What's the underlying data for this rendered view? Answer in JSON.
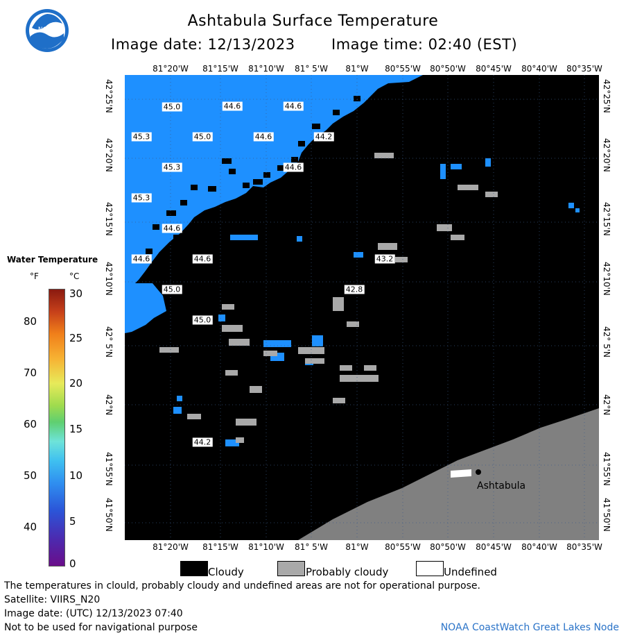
{
  "header": {
    "title": "Ashtabula Surface Temperature",
    "image_date": "Image date: 12/13/2023",
    "image_time": "Image time: 02:40 (EST)"
  },
  "logo": {
    "text": "NOAA",
    "color": "#1f6fc8"
  },
  "map": {
    "lon_labels": [
      "81°20'W",
      "81°15'W",
      "81°10'W",
      "81° 5'W",
      "81°W",
      "80°55'W",
      "80°50'W",
      "80°45'W",
      "80°40'W",
      "80°35'W"
    ],
    "lat_labels": [
      "42°25'N",
      "42°20'N",
      "42°15'N",
      "42°10'N",
      "42° 5'N",
      "42°N",
      "41°55'N",
      "41°50'N"
    ],
    "town": "Ashtabula",
    "water_color": "#1e90ff",
    "cloud_color": "#000000",
    "probably_cloudy_color": "#a9a9a9",
    "land_color": "#808080",
    "temperatures": [
      "45.0",
      "44.6",
      "44.6",
      "45.3",
      "45.0",
      "44.6",
      "44.2",
      "45.3",
      "44.6",
      "45.3",
      "44.6",
      "44.6",
      "44.6",
      "43.2",
      "42.8",
      "45.0",
      "45.0",
      "44.2"
    ]
  },
  "legend": {
    "title": "Water Temperature",
    "unit_f": "°F",
    "unit_c": "°C",
    "fahrenheit_ticks": [
      "80",
      "70",
      "60",
      "50",
      "40"
    ],
    "celsius_ticks": [
      "30",
      "25",
      "20",
      "15",
      "10",
      "5",
      "0"
    ]
  },
  "key": {
    "cloudy": "Cloudy",
    "probably_cloudy": "Probably cloudy",
    "undefined": "Undefined"
  },
  "footer": {
    "note": "The temperatures in clould, probably cloudy and undefined areas are not for operational purpose.",
    "satellite": "Satellite: VIIRS_N20",
    "utc": "Image date: (UTC) 12/13/2023  07:40",
    "nav": "Not to be used for navigational purpose",
    "node": "NOAA CoastWatch Great Lakes Node"
  }
}
